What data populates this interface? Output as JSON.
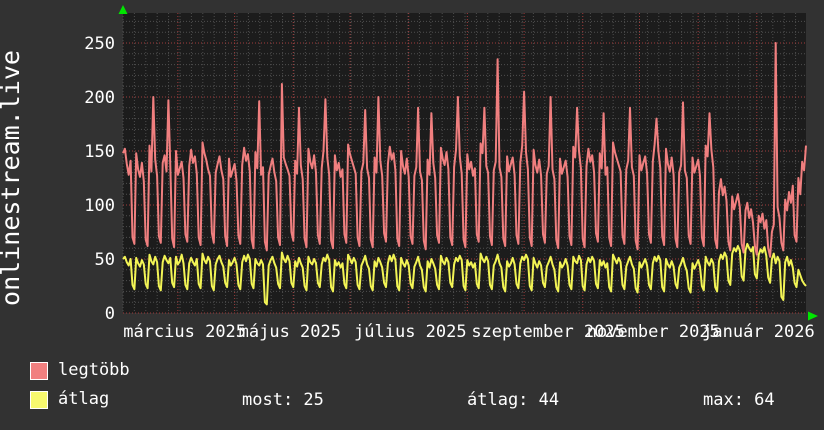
{
  "title": "onlinestream.live",
  "colors": {
    "outer_background": "#323232",
    "plot_background": "#1c1c1c",
    "minor_grid": "#4e4e4e",
    "major_grid_red": "#9f3b3b",
    "series_legtobb": "#f07f7f",
    "series_atlag": "#f2f455",
    "legend_swatch_legtobb": "#f18080",
    "legend_swatch_atlag": "#f7f96e",
    "axis_arrow_green": "#00e600",
    "text": "#ffffff"
  },
  "legend": {
    "items": [
      {
        "label": "legtöbb",
        "color": "#f18080"
      },
      {
        "label": "átlag",
        "color": "#f7f96e"
      }
    ]
  },
  "stats": {
    "most_text": "most: 25",
    "atlag_text": "átlag: 44",
    "max_text": "max: 64"
  },
  "chart_data": {
    "type": "line",
    "title": "onlinestream.live",
    "xlabel": "",
    "ylabel": "onlinestream.live",
    "ylim": [
      0,
      278
    ],
    "y_ticks": [
      0,
      50,
      100,
      150,
      200,
      250
    ],
    "grid": true,
    "legend_position": "bottom-left",
    "x_axis": {
      "start_label": "március 2025",
      "labels": [
        {
          "text": "március 2025",
          "day": -2
        },
        {
          "text": "május 2025",
          "day": 59
        },
        {
          "text": "július 2025",
          "day": 120
        },
        {
          "text": "szeptember 2025",
          "day": 182
        },
        {
          "text": "november 2025",
          "day": 243
        },
        {
          "text": "január 2026",
          "day": 304
        }
      ],
      "month_gridline_days": [
        29,
        59,
        90,
        120,
        151,
        182,
        212,
        243,
        273,
        304,
        335
      ],
      "days_total": 362
    },
    "series": [
      {
        "name": "legtöbb",
        "color": "#f07f7f",
        "stats": {
          "max": 250
        },
        "weekly_values": [
          [
            148,
            152,
            138,
            128,
            141,
            70,
            64
          ],
          [
            148,
            133,
            126,
            139,
            122,
            68,
            62
          ],
          [
            155,
            131,
            200,
            142,
            127,
            71,
            65
          ],
          [
            139,
            146,
            131,
            197,
            136,
            69,
            61
          ],
          [
            150,
            128,
            134,
            140,
            125,
            73,
            66
          ],
          [
            136,
            151,
            139,
            145,
            129,
            70,
            63
          ],
          [
            158,
            148,
            142,
            133,
            127,
            74,
            65
          ],
          [
            130,
            138,
            145,
            132,
            124,
            71,
            62
          ],
          [
            143,
            126,
            132,
            138,
            123,
            72,
            64
          ],
          [
            137,
            153,
            141,
            147,
            131,
            68,
            60
          ],
          [
            149,
            134,
            196,
            128,
            135,
            66,
            58
          ],
          [
            128,
            136,
            143,
            130,
            122,
            70,
            63
          ],
          [
            212,
            144,
            138,
            133,
            127,
            75,
            67
          ],
          [
            141,
            129,
            190,
            137,
            124,
            69,
            61
          ],
          [
            152,
            140,
            134,
            146,
            130,
            72,
            64
          ],
          [
            134,
            150,
            198,
            144,
            128,
            67,
            60
          ],
          [
            146,
            132,
            139,
            126,
            133,
            73,
            65
          ],
          [
            156,
            147,
            141,
            135,
            129,
            70,
            62
          ],
          [
            131,
            139,
            188,
            134,
            125,
            68,
            61
          ],
          [
            144,
            130,
            200,
            141,
            127,
            74,
            66
          ],
          [
            138,
            154,
            142,
            148,
            132,
            69,
            62
          ],
          [
            150,
            136,
            129,
            143,
            126,
            71,
            64
          ],
          [
            127,
            135,
            190,
            131,
            123,
            67,
            59
          ],
          [
            142,
            128,
            185,
            139,
            125,
            72,
            65
          ],
          [
            153,
            143,
            137,
            149,
            133,
            70,
            63
          ],
          [
            135,
            151,
            200,
            145,
            129,
            68,
            61
          ],
          [
            147,
            133,
            140,
            127,
            134,
            73,
            66
          ],
          [
            157,
            148,
            190,
            136,
            130,
            71,
            63
          ],
          [
            132,
            140,
            235,
            135,
            126,
            69,
            62
          ],
          [
            145,
            131,
            138,
            144,
            128,
            72,
            64
          ],
          [
            139,
            155,
            205,
            149,
            133,
            70,
            62
          ],
          [
            151,
            137,
            130,
            142,
            127,
            73,
            65
          ],
          [
            129,
            136,
            200,
            133,
            124,
            68,
            60
          ],
          [
            143,
            129,
            135,
            141,
            126,
            71,
            63
          ],
          [
            154,
            144,
            190,
            150,
            134,
            69,
            61
          ],
          [
            136,
            152,
            140,
            146,
            130,
            74,
            66
          ],
          [
            148,
            134,
            185,
            128,
            135,
            70,
            62
          ],
          [
            158,
            149,
            143,
            137,
            131,
            72,
            64
          ],
          [
            133,
            141,
            190,
            135,
            127,
            67,
            59
          ],
          [
            146,
            132,
            139,
            145,
            129,
            73,
            65
          ],
          [
            140,
            156,
            180,
            150,
            134,
            71,
            63
          ],
          [
            152,
            138,
            131,
            144,
            128,
            69,
            61
          ],
          [
            130,
            137,
            195,
            132,
            125,
            72,
            64
          ],
          [
            144,
            130,
            136,
            142,
            127,
            70,
            62
          ],
          [
            155,
            145,
            185,
            151,
            135,
            68,
            60
          ],
          [
            112,
            124,
            109,
            117,
            104,
            66,
            58
          ],
          [
            108,
            96,
            103,
            110,
            98,
            64,
            56
          ],
          [
            95,
            102,
            88,
            96,
            84,
            62,
            54
          ],
          [
            90,
            84,
            92,
            78,
            86,
            60,
            52
          ],
          [
            75,
            82,
            250,
            98,
            88,
            65,
            58
          ],
          [
            105,
            95,
            112,
            102,
            118,
            72,
            66
          ],
          [
            125,
            110,
            140,
            132,
            155
          ]
        ]
      },
      {
        "name": "átlag",
        "color": "#f2f455",
        "stats": {
          "most": 25,
          "atlag": 44,
          "max": 64
        },
        "weekly_values": [
          [
            50,
            52,
            47,
            44,
            50,
            26,
            22
          ],
          [
            51,
            46,
            43,
            49,
            45,
            27,
            23
          ],
          [
            54,
            48,
            45,
            52,
            47,
            25,
            21
          ],
          [
            47,
            53,
            49,
            46,
            51,
            28,
            24
          ],
          [
            52,
            45,
            48,
            54,
            46,
            26,
            22
          ],
          [
            46,
            51,
            47,
            44,
            50,
            27,
            23
          ],
          [
            55,
            49,
            46,
            52,
            48,
            25,
            21
          ],
          [
            45,
            50,
            53,
            47,
            43,
            28,
            24
          ],
          [
            49,
            44,
            47,
            51,
            45,
            26,
            22
          ],
          [
            47,
            53,
            48,
            54,
            50,
            27,
            23
          ],
          [
            50,
            46,
            44,
            49,
            45,
            10,
            8
          ],
          [
            44,
            49,
            52,
            46,
            42,
            27,
            23
          ],
          [
            56,
            50,
            47,
            53,
            48,
            28,
            24
          ],
          [
            48,
            43,
            51,
            46,
            42,
            25,
            21
          ],
          [
            52,
            47,
            45,
            50,
            46,
            28,
            24
          ],
          [
            45,
            51,
            48,
            54,
            49,
            24,
            20
          ],
          [
            49,
            44,
            47,
            42,
            46,
            27,
            23
          ],
          [
            54,
            50,
            46,
            51,
            47,
            26,
            22
          ],
          [
            44,
            48,
            53,
            45,
            41,
            25,
            21
          ],
          [
            48,
            43,
            51,
            47,
            42,
            28,
            24
          ],
          [
            46,
            53,
            48,
            54,
            49,
            25,
            21
          ],
          [
            51,
            46,
            43,
            49,
            44,
            27,
            23
          ],
          [
            43,
            47,
            52,
            44,
            40,
            24,
            20
          ],
          [
            48,
            42,
            50,
            46,
            41,
            26,
            22
          ],
          [
            53,
            48,
            45,
            51,
            47,
            28,
            24
          ],
          [
            45,
            51,
            48,
            53,
            49,
            25,
            21
          ],
          [
            49,
            44,
            47,
            42,
            46,
            27,
            23
          ],
          [
            55,
            50,
            47,
            52,
            48,
            26,
            22
          ],
          [
            44,
            48,
            54,
            46,
            42,
            24,
            20
          ],
          [
            48,
            43,
            46,
            51,
            45,
            27,
            23
          ],
          [
            46,
            52,
            49,
            54,
            50,
            25,
            21
          ],
          [
            51,
            46,
            42,
            48,
            44,
            28,
            24
          ],
          [
            43,
            47,
            52,
            45,
            40,
            24,
            20
          ],
          [
            47,
            42,
            45,
            50,
            44,
            26,
            22
          ],
          [
            52,
            48,
            46,
            53,
            49,
            25,
            21
          ],
          [
            45,
            51,
            47,
            52,
            48,
            27,
            23
          ],
          [
            49,
            44,
            48,
            42,
            46,
            24,
            20
          ],
          [
            54,
            50,
            46,
            51,
            47,
            26,
            22
          ],
          [
            43,
            48,
            52,
            45,
            41,
            23,
            19
          ],
          [
            47,
            42,
            46,
            50,
            44,
            26,
            22
          ],
          [
            46,
            52,
            48,
            53,
            49,
            24,
            20
          ],
          [
            50,
            45,
            42,
            48,
            43,
            27,
            23
          ],
          [
            42,
            46,
            51,
            44,
            39,
            23,
            19
          ],
          [
            46,
            41,
            45,
            49,
            43,
            25,
            21
          ],
          [
            52,
            47,
            44,
            50,
            46,
            24,
            20
          ],
          [
            48,
            54,
            50,
            56,
            52,
            30,
            26
          ],
          [
            55,
            60,
            57,
            62,
            58,
            34,
            30
          ],
          [
            58,
            64,
            60,
            57,
            61,
            36,
            32
          ],
          [
            54,
            59,
            56,
            61,
            53,
            33,
            28
          ],
          [
            50,
            55,
            46,
            52,
            48,
            15,
            12
          ],
          [
            47,
            52,
            44,
            49,
            42,
            28,
            24
          ],
          [
            40,
            35,
            30,
            27,
            25
          ]
        ]
      }
    ]
  }
}
